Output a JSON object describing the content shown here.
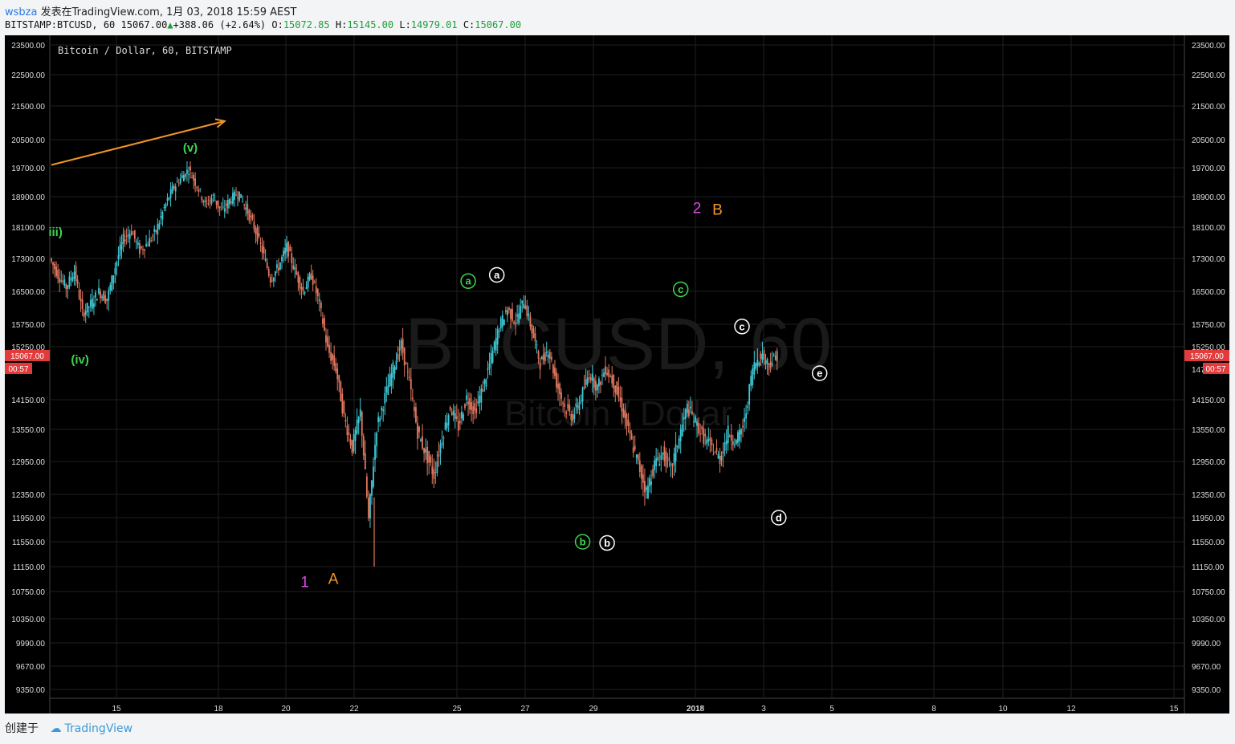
{
  "header": {
    "user": "wsbza",
    "published": "发表在TradingView.com, 1月 03, 2018 15:59 AEST",
    "symbol": "BITSTAMP:BTCUSD, 60",
    "last": "15067.00",
    "change": "+388.06 (+2.64%)",
    "o_label": "O:",
    "o_value": "15072.85",
    "h_label": "H:",
    "h_value": "15145.00",
    "l_label": "L:",
    "l_value": "14979.01",
    "c_label": "C:",
    "c_value": "15067.00"
  },
  "footer": {
    "created": "创建于",
    "brand": "TradingView"
  },
  "colors": {
    "up": "#3fc9d6",
    "down": "#e2785f",
    "bg": "#000000",
    "orange": "#f0962a",
    "green": "#3bd64e",
    "magenta": "#d84ae2",
    "white": "#ffffff"
  },
  "chart_data": {
    "type": "candlestick",
    "title": "Bitcoin / Dollar, 60, BITSTAMP",
    "watermark_main": "BTCUSD, 60",
    "watermark_sub": "Bitcoin / Dollar",
    "y_ticks": [
      23500,
      22500,
      21500,
      20500,
      19700,
      18900,
      18100,
      17300,
      16500,
      15750,
      15250,
      14150,
      13550,
      12950,
      12350,
      11950,
      11550,
      11150,
      10750,
      10350,
      9990,
      9670,
      9350
    ],
    "y_tick_labels": [
      "23500.00",
      "22500.00",
      "21500.00",
      "20500.00",
      "19700.00",
      "18900.00",
      "18100.00",
      "17300.00",
      "16500.00",
      "15750.00",
      "15250.00",
      "14150.00",
      "13550.00",
      "12950.00",
      "12350.00",
      "11950.00",
      "11550.00",
      "11150.00",
      "10750.00",
      "10350.00",
      "9990.00",
      "9670.00",
      "9350.00"
    ],
    "right_partial_tick": "147",
    "price_tag": "15067.00",
    "countdown": "00:57",
    "x_ticks": [
      "15",
      "18",
      "20",
      "22",
      "25",
      "27",
      "29",
      "2018",
      "3",
      "5",
      "8",
      "10",
      "12",
      "15"
    ],
    "price_path": [
      [
        0,
        17300
      ],
      [
        2,
        16900
      ],
      [
        4,
        16600
      ],
      [
        6,
        17000
      ],
      [
        8,
        16000
      ],
      [
        10,
        16200
      ],
      [
        12,
        16500
      ],
      [
        14,
        16300
      ],
      [
        16,
        17100
      ],
      [
        18,
        17800
      ],
      [
        20,
        18000
      ],
      [
        22,
        17500
      ],
      [
        24,
        17700
      ],
      [
        26,
        18000
      ],
      [
        28,
        18600
      ],
      [
        30,
        19100
      ],
      [
        32,
        19400
      ],
      [
        34,
        19650
      ],
      [
        36,
        19200
      ],
      [
        38,
        18700
      ],
      [
        40,
        18900
      ],
      [
        42,
        18500
      ],
      [
        44,
        18800
      ],
      [
        46,
        19000
      ],
      [
        48,
        18600
      ],
      [
        50,
        18100
      ],
      [
        52,
        17500
      ],
      [
        54,
        16800
      ],
      [
        56,
        17100
      ],
      [
        58,
        17600
      ],
      [
        60,
        17000
      ],
      [
        62,
        16500
      ],
      [
        64,
        16900
      ],
      [
        66,
        16200
      ],
      [
        68,
        15200
      ],
      [
        70,
        14800
      ],
      [
        72,
        13800
      ],
      [
        74,
        13200
      ],
      [
        76,
        13900
      ],
      [
        78,
        11900
      ],
      [
        80,
        13600
      ],
      [
        82,
        14200
      ],
      [
        84,
        14800
      ],
      [
        86,
        15300
      ],
      [
        88,
        14500
      ],
      [
        90,
        13500
      ],
      [
        92,
        13100
      ],
      [
        94,
        12700
      ],
      [
        96,
        13400
      ],
      [
        98,
        14000
      ],
      [
        100,
        13600
      ],
      [
        102,
        14200
      ],
      [
        104,
        13900
      ],
      [
        106,
        14400
      ],
      [
        108,
        15000
      ],
      [
        110,
        15700
      ],
      [
        112,
        16100
      ],
      [
        114,
        15800
      ],
      [
        116,
        16300
      ],
      [
        118,
        15600
      ],
      [
        120,
        14900
      ],
      [
        122,
        15200
      ],
      [
        124,
        14500
      ],
      [
        126,
        14000
      ],
      [
        128,
        13800
      ],
      [
        130,
        14200
      ],
      [
        132,
        14700
      ],
      [
        134,
        14400
      ],
      [
        136,
        14800
      ],
      [
        138,
        14500
      ],
      [
        140,
        14000
      ],
      [
        142,
        13400
      ],
      [
        144,
        12900
      ],
      [
        146,
        12400
      ],
      [
        148,
        12900
      ],
      [
        150,
        13100
      ],
      [
        152,
        12800
      ],
      [
        154,
        13400
      ],
      [
        156,
        14000
      ],
      [
        158,
        13700
      ],
      [
        160,
        13400
      ],
      [
        162,
        13200
      ],
      [
        164,
        13000
      ],
      [
        166,
        13500
      ],
      [
        168,
        13300
      ],
      [
        170,
        13700
      ],
      [
        172,
        14800
      ],
      [
        174,
        15100
      ],
      [
        176,
        14900
      ],
      [
        178,
        15067
      ]
    ],
    "price_path_x_note": "x is hourly bar index from chart start",
    "annotations": [
      {
        "text": "iii)",
        "color": "green",
        "date_idx": 1,
        "price": 18000,
        "circled": false
      },
      {
        "text": "(v)",
        "color": "green",
        "date_idx": 34,
        "price": 20300,
        "circled": false
      },
      {
        "text": "(iv)",
        "color": "green",
        "date_idx": 7,
        "price": 15000,
        "circled": false
      },
      {
        "text": "1",
        "color": "magenta",
        "date_idx": 62,
        "price": 10900,
        "circled": false
      },
      {
        "text": "A",
        "color": "orange",
        "date_idx": 69,
        "price": 10950,
        "circled": false
      },
      {
        "text": "a",
        "color": "green",
        "date_idx": 102,
        "price": 16750,
        "circled": true
      },
      {
        "text": "a",
        "color": "white",
        "date_idx": 109,
        "price": 16900,
        "circled": true
      },
      {
        "text": "b",
        "color": "green",
        "date_idx": 130,
        "price": 11550,
        "circled": true
      },
      {
        "text": "b",
        "color": "white",
        "date_idx": 136,
        "price": 11530,
        "circled": true
      },
      {
        "text": "c",
        "color": "green",
        "date_idx": 154,
        "price": 16550,
        "circled": true
      },
      {
        "text": "2",
        "color": "magenta",
        "date_idx": 158,
        "price": 18600,
        "circled": false
      },
      {
        "text": "B",
        "color": "orange",
        "date_idx": 163,
        "price": 18550,
        "circled": false
      },
      {
        "text": "c",
        "color": "white",
        "date_idx": 169,
        "price": 15700,
        "circled": true
      },
      {
        "text": "e",
        "color": "white",
        "date_idx": 188,
        "price": 14700,
        "circled": true
      },
      {
        "text": "d",
        "color": "white",
        "date_idx": 178,
        "price": 11950,
        "circled": true
      }
    ],
    "trend_arrow": {
      "color": "orange",
      "from": {
        "date_idx": 0,
        "price": 19780
      },
      "to": {
        "date_idx": 42,
        "price": 21050
      }
    },
    "grid": true
  }
}
